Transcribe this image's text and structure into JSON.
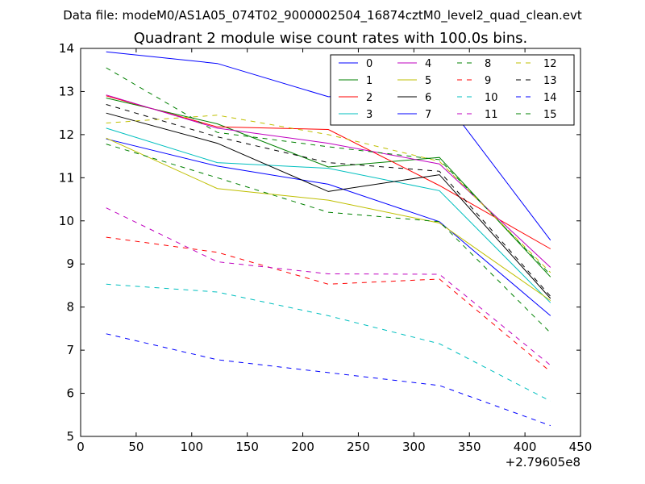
{
  "chart_data": {
    "type": "line",
    "suptitle": "Data file: modeM0/AS1A05_074T02_9000002504_16874cztM0_level2_quad_clean.evt",
    "title": "Quadrant 2 module wise count rates with 100.0s bins.",
    "xlabel": "",
    "ylabel": "",
    "x_offset_label": "+2.79605e8",
    "xlim": [
      0,
      450
    ],
    "ylim": [
      5,
      14
    ],
    "x_ticks": [
      0,
      50,
      100,
      150,
      200,
      250,
      300,
      350,
      400,
      450
    ],
    "y_ticks": [
      5,
      6,
      7,
      8,
      9,
      10,
      11,
      12,
      13,
      14
    ],
    "x_tick_labels": [
      "0",
      "50",
      "100",
      "150",
      "200",
      "250",
      "300",
      "350",
      "400",
      "450"
    ],
    "y_tick_labels": [
      "5",
      "6",
      "7",
      "8",
      "9",
      "10",
      "11",
      "12",
      "13",
      "14"
    ],
    "x": [
      23,
      123,
      223,
      323,
      423
    ],
    "legend_position": "top-right",
    "series": [
      {
        "name": "0",
        "color": "#0000ff",
        "dash": "solid",
        "values": [
          11.9,
          11.27,
          10.85,
          9.98,
          7.8
        ]
      },
      {
        "name": "1",
        "color": "#008000",
        "dash": "solid",
        "values": [
          12.85,
          12.25,
          11.25,
          11.47,
          8.7
        ]
      },
      {
        "name": "2",
        "color": "#ff0000",
        "dash": "solid",
        "values": [
          12.9,
          12.18,
          12.12,
          10.82,
          9.35
        ]
      },
      {
        "name": "3",
        "color": "#00bfbf",
        "dash": "solid",
        "values": [
          12.15,
          11.35,
          11.22,
          10.7,
          8.1
        ]
      },
      {
        "name": "4",
        "color": "#bf00bf",
        "dash": "solid",
        "values": [
          12.92,
          12.15,
          11.8,
          11.32,
          8.92
        ]
      },
      {
        "name": "5",
        "color": "#bfbf00",
        "dash": "solid",
        "values": [
          11.92,
          10.75,
          10.48,
          9.95,
          8.15
        ]
      },
      {
        "name": "6",
        "color": "#000000",
        "dash": "solid",
        "values": [
          12.5,
          11.8,
          10.68,
          11.07,
          8.2
        ]
      },
      {
        "name": "7",
        "color": "#0000ff",
        "dash": "solid",
        "values": [
          13.92,
          13.65,
          12.88,
          12.95,
          9.55
        ]
      },
      {
        "name": "8",
        "color": "#008000",
        "dash": "dashed",
        "values": [
          13.55,
          12.05,
          11.72,
          11.42,
          8.75
        ]
      },
      {
        "name": "9",
        "color": "#ff0000",
        "dash": "dashed",
        "values": [
          9.62,
          9.27,
          8.53,
          8.65,
          6.5
        ]
      },
      {
        "name": "10",
        "color": "#00bfbf",
        "dash": "dashed",
        "values": [
          8.53,
          8.35,
          7.8,
          7.15,
          5.82
        ]
      },
      {
        "name": "11",
        "color": "#bf00bf",
        "dash": "dashed",
        "values": [
          10.3,
          9.05,
          8.77,
          8.76,
          6.65
        ]
      },
      {
        "name": "12",
        "color": "#bfbf00",
        "dash": "dashed",
        "values": [
          12.27,
          12.45,
          12.0,
          11.38,
          8.8
        ]
      },
      {
        "name": "13",
        "color": "#000000",
        "dash": "dashed",
        "values": [
          12.7,
          11.95,
          11.35,
          11.15,
          8.25
        ]
      },
      {
        "name": "14",
        "color": "#0000ff",
        "dash": "dashed",
        "values": [
          7.38,
          6.78,
          6.48,
          6.18,
          5.25
        ]
      },
      {
        "name": "15",
        "color": "#008000",
        "dash": "dashed",
        "values": [
          11.78,
          11.0,
          10.2,
          9.98,
          7.4
        ]
      }
    ]
  }
}
